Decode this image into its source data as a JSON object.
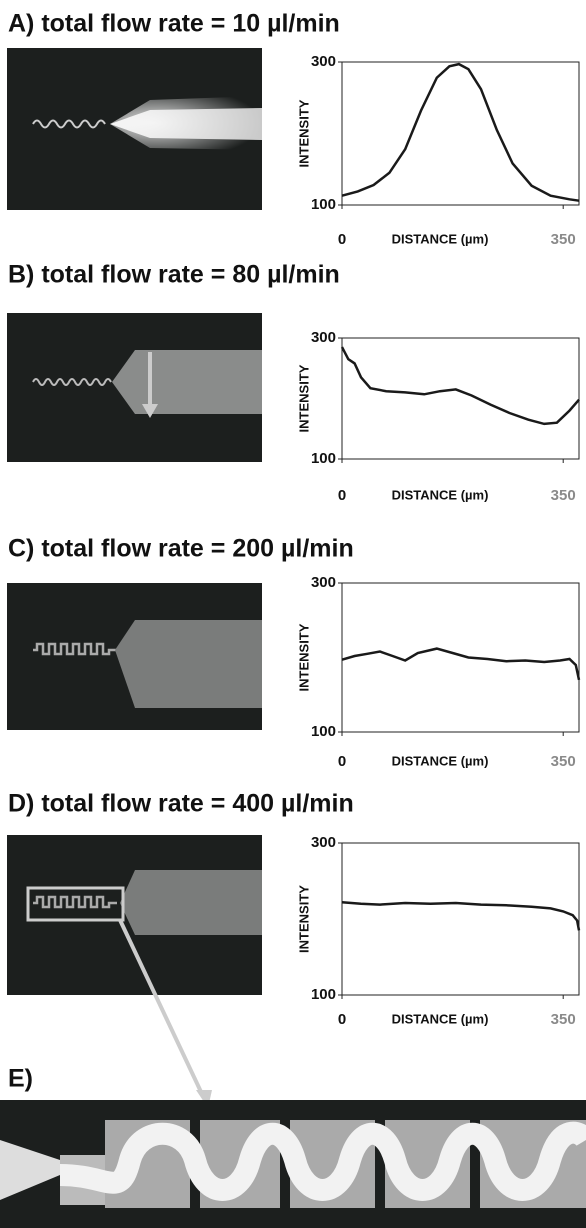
{
  "chart_data": [
    {
      "type": "line",
      "title": "A) total flow rate = 10 µl/min",
      "xlabel": "DISTANCE (µm)",
      "ylabel": "INTENSITY",
      "x": [
        0,
        25,
        50,
        75,
        100,
        125,
        150,
        170,
        185,
        200,
        220,
        245,
        270,
        300,
        330,
        360,
        375
      ],
      "series": [
        {
          "color": "#1a1a1a",
          "values": [
            113,
            119,
            128,
            145,
            178,
            232,
            278,
            294,
            297,
            290,
            262,
            205,
            158,
            127,
            113,
            108,
            106
          ]
        }
      ],
      "xlim": [
        0,
        375
      ],
      "xticks": [
        0,
        350
      ],
      "ylim": [
        100,
        300
      ],
      "yticks": [
        100,
        300
      ]
    },
    {
      "type": "line",
      "title": "B) total flow rate = 80 µl/min",
      "xlabel": "DISTANCE (µm)",
      "ylabel": "INTENSITY",
      "x": [
        0,
        10,
        20,
        30,
        45,
        70,
        100,
        130,
        155,
        180,
        205,
        235,
        265,
        295,
        320,
        340,
        360,
        375
      ],
      "series": [
        {
          "color": "#1a1a1a",
          "values": [
            285,
            265,
            258,
            235,
            217,
            212,
            210,
            207,
            212,
            215,
            205,
            190,
            176,
            165,
            158,
            160,
            180,
            198
          ]
        }
      ],
      "xlim": [
        0,
        375
      ],
      "xticks": [
        0,
        350
      ],
      "ylim": [
        100,
        300
      ],
      "yticks": [
        100,
        300
      ]
    },
    {
      "type": "line",
      "title": "C) total flow rate = 200 µl/min",
      "xlabel": "DISTANCE (µm)",
      "ylabel": "INTENSITY",
      "x": [
        0,
        20,
        40,
        60,
        80,
        100,
        120,
        150,
        175,
        200,
        230,
        260,
        290,
        320,
        345,
        360,
        370,
        375
      ],
      "series": [
        {
          "color": "#1a1a1a",
          "values": [
            197,
            202,
            205,
            208,
            202,
            196,
            206,
            212,
            206,
            200,
            198,
            195,
            196,
            194,
            196,
            198,
            190,
            170
          ]
        }
      ],
      "xlim": [
        0,
        375
      ],
      "xticks": [
        0,
        350
      ],
      "ylim": [
        100,
        300
      ],
      "yticks": [
        100,
        300
      ]
    },
    {
      "type": "line",
      "title": "D) total flow rate = 400 µl/min",
      "xlabel": "DISTANCE (µm)",
      "ylabel": "INTENSITY",
      "x": [
        0,
        30,
        60,
        100,
        140,
        180,
        220,
        260,
        300,
        330,
        350,
        365,
        372,
        375
      ],
      "series": [
        {
          "color": "#1a1a1a",
          "values": [
            222,
            220,
            219,
            221,
            220,
            221,
            219,
            218,
            216,
            214,
            210,
            205,
            198,
            185
          ]
        }
      ],
      "xlim": [
        0,
        375
      ],
      "xticks": [
        0,
        350
      ],
      "ylim": [
        100,
        300
      ],
      "yticks": [
        100,
        300
      ]
    }
  ],
  "panel_e": {
    "label": "E)"
  }
}
